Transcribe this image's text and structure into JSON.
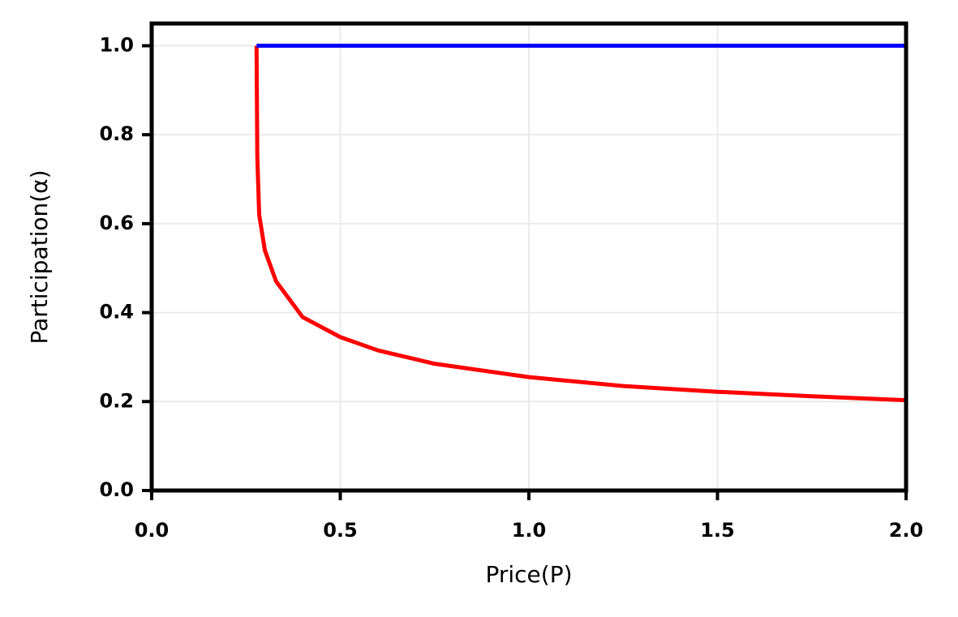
{
  "chart_data": {
    "type": "line",
    "xlabel": "Price(P)",
    "ylabel": "Participation(α)",
    "xlim": [
      0,
      2
    ],
    "ylim": [
      0,
      1.05
    ],
    "xticks": [
      {
        "value": 0,
        "label": "0.0"
      },
      0.5,
      {
        "value": 1,
        "label": "1.0"
      },
      1.5,
      {
        "value": 2,
        "label": "2.0"
      }
    ],
    "yticks": [
      {
        "value": 0,
        "label": "0.0"
      },
      0.2,
      0.4,
      0.6,
      0.8,
      {
        "value": 1,
        "label": "1.0"
      }
    ],
    "grid": true,
    "series": [
      {
        "color": "#ff0000",
        "x": [
          0.278,
          0.28,
          0.285,
          0.3,
          0.33,
          0.4,
          0.5,
          0.6,
          0.75,
          1.0,
          1.25,
          1.5,
          1.75,
          2.0
        ],
        "values": [
          1.0,
          0.75,
          0.62,
          0.54,
          0.47,
          0.39,
          0.345,
          0.315,
          0.285,
          0.255,
          0.235,
          0.222,
          0.212,
          0.203
        ]
      },
      {
        "color": "#0000ff",
        "x": [
          0.278,
          2.0
        ],
        "values": [
          1.0,
          1.0
        ]
      }
    ]
  }
}
